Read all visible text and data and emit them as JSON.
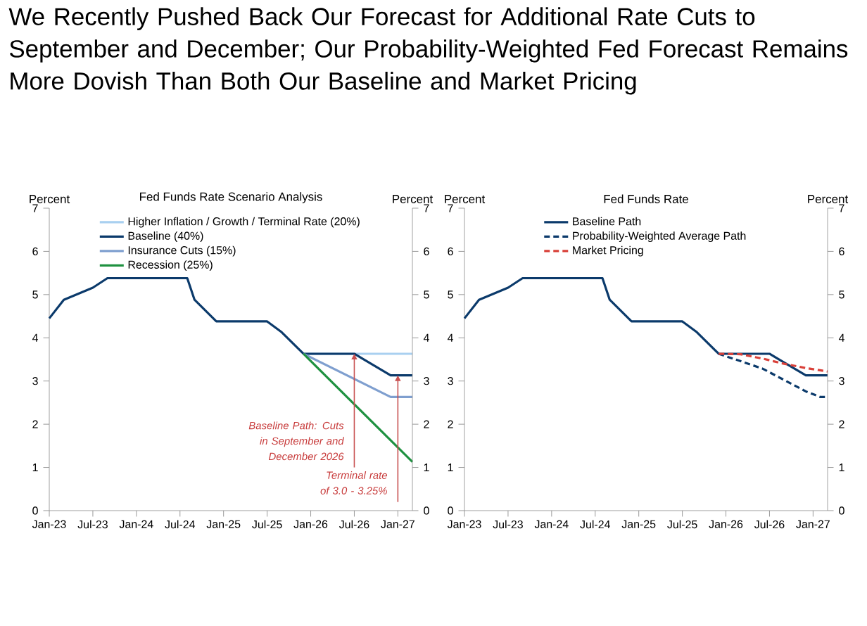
{
  "chart_data": [
    {
      "type": "line",
      "title": "We Recently Pushed Back Our Forecast for Additional Rate Cuts to September and December; Our Probability-Weighted Fed Forecast Remains More Dovish Than Both Our Baseline and Market Pricing",
      "subtitle": "Fed Funds Rate Scenario Analysis",
      "ylabel": "Percent",
      "y2label": "Percent",
      "series": [
        {
          "name": "Higher Inflation / Growth / Terminal Rate (20%)",
          "color": "#a9d0f0",
          "x": [
            "2025-12",
            "2027-03"
          ],
          "values": [
            3.63,
            3.63
          ]
        },
        {
          "name": "Baseline (40%)",
          "color": "#0b3a6b",
          "x": [
            "2023-01",
            "2023-03",
            "2023-07",
            "2023-09",
            "2024-08",
            "2024-09",
            "2024-12",
            "2025-07",
            "2025-09",
            "2025-12",
            "2026-07",
            "2026-12",
            "2027-03"
          ],
          "values": [
            4.45,
            4.88,
            5.16,
            5.38,
            5.38,
            4.88,
            4.38,
            4.38,
            4.13,
            3.63,
            3.63,
            3.13,
            3.13
          ]
        },
        {
          "name": "Insurance Cuts (15%)",
          "color": "#7f9fcf",
          "x": [
            "2025-12",
            "2026-12",
            "2027-03"
          ],
          "values": [
            3.63,
            2.63,
            2.63
          ]
        },
        {
          "name": "Recession (25%)",
          "color": "#1e9140",
          "x": [
            "2025-12",
            "2027-03"
          ],
          "values": [
            3.63,
            1.13
          ]
        }
      ],
      "xlim": [
        "2023-01",
        "2027-03"
      ],
      "xticks": [
        {
          "value": "2023-01",
          "label": "Jan-23"
        },
        {
          "value": "2023-07",
          "label": "Jul-23"
        },
        {
          "value": "2024-01",
          "label": "Jan-24"
        },
        {
          "value": "2024-07",
          "label": "Jul-24"
        },
        {
          "value": "2025-01",
          "label": "Jan-25"
        },
        {
          "value": "2025-07",
          "label": "Jul-25"
        },
        {
          "value": "2026-01",
          "label": "Jan-26"
        },
        {
          "value": "2026-07",
          "label": "Jul-26"
        },
        {
          "value": "2027-01",
          "label": "Jan-27"
        }
      ],
      "ylim": [
        0,
        7
      ],
      "yticks": [
        0,
        1,
        2,
        3,
        4,
        5,
        6,
        7
      ],
      "y2lim": [
        0,
        7
      ],
      "y2ticks": [
        0,
        1,
        2,
        3,
        4,
        5,
        6,
        7
      ],
      "annotations": [
        {
          "text": "Baseline Path: Cuts in September and December 2026",
          "x": "2026-07",
          "y": 3.63
        },
        {
          "text": "Terminal rate of 3.0 - 3.25%",
          "x": "2027-01",
          "y": 3.13
        }
      ],
      "legend": "top",
      "grid": false,
      "marker": "none",
      "line_style": "solid"
    },
    {
      "type": "line",
      "title": "Fed Funds Rate",
      "ylabel": "Percent",
      "y2label": "Percent",
      "series": [
        {
          "name": "Baseline Path",
          "color": "#0b3a6b",
          "line_style": "solid",
          "x": [
            "2023-01",
            "2023-03",
            "2023-07",
            "2023-09",
            "2024-08",
            "2024-09",
            "2024-12",
            "2025-07",
            "2025-09",
            "2025-12",
            "2026-07",
            "2026-12",
            "2027-03"
          ],
          "values": [
            4.45,
            4.88,
            5.16,
            5.38,
            5.38,
            4.88,
            4.38,
            4.38,
            4.13,
            3.63,
            3.63,
            3.13,
            3.13
          ]
        },
        {
          "name": "Probability-Weighted Average Path",
          "color": "#0b3a6b",
          "line_style": "dashed",
          "x": [
            "2025-12",
            "2026-06",
            "2026-12",
            "2027-02",
            "2027-03"
          ],
          "values": [
            3.63,
            3.29,
            2.76,
            2.63,
            2.63
          ]
        },
        {
          "name": "Market Pricing",
          "color": "#d9413a",
          "line_style": "dashed",
          "x": [
            "2025-12",
            "2026-03",
            "2026-06",
            "2026-09",
            "2026-12",
            "2027-03"
          ],
          "values": [
            3.63,
            3.62,
            3.52,
            3.4,
            3.3,
            3.22
          ]
        }
      ],
      "xlim": [
        "2023-01",
        "2027-03"
      ],
      "xticks": [
        {
          "value": "2023-01",
          "label": "Jan-23"
        },
        {
          "value": "2023-07",
          "label": "Jul-23"
        },
        {
          "value": "2024-01",
          "label": "Jan-24"
        },
        {
          "value": "2024-07",
          "label": "Jul-24"
        },
        {
          "value": "2025-01",
          "label": "Jan-25"
        },
        {
          "value": "2025-07",
          "label": "Jul-25"
        },
        {
          "value": "2026-01",
          "label": "Jan-26"
        },
        {
          "value": "2026-07",
          "label": "Jul-26"
        },
        {
          "value": "2027-01",
          "label": "Jan-27"
        }
      ],
      "ylim": [
        0,
        7
      ],
      "yticks": [
        0,
        1,
        2,
        3,
        4,
        5,
        6,
        7
      ],
      "y2lim": [
        0,
        7
      ],
      "y2ticks": [
        0,
        1,
        2,
        3,
        4,
        5,
        6,
        7
      ],
      "legend": "top",
      "grid": false,
      "marker": "none"
    }
  ]
}
